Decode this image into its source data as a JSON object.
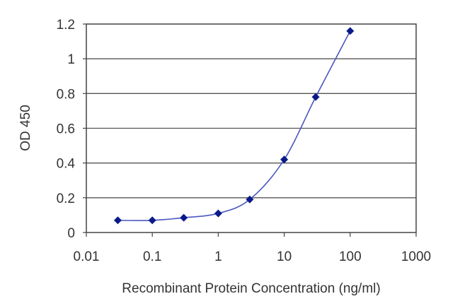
{
  "chart_data": {
    "type": "line",
    "x_scale": "log",
    "xlabel": "Recombinant Protein Concentration (ng/ml)",
    "ylabel": "OD 450",
    "xlim": [
      0.01,
      1000
    ],
    "ylim": [
      0,
      1.2
    ],
    "x_ticks": [
      "0.01",
      "0.1",
      "1",
      "10",
      "100",
      "1000"
    ],
    "y_ticks": [
      "0",
      "0.2",
      "0.4",
      "0.6",
      "0.8",
      "1",
      "1.2"
    ],
    "grid": "horizontal",
    "legend": "none",
    "series": [
      {
        "x": [
          0.03,
          0.1,
          0.3,
          1,
          3,
          10,
          30,
          100
        ],
        "y": [
          0.07,
          0.07,
          0.085,
          0.11,
          0.19,
          0.42,
          0.78,
          1.16
        ]
      }
    ],
    "colors": {
      "line": "#4a56c0",
      "marker": "#0a1a8a",
      "grid": "#555555",
      "frame": "#444444"
    }
  }
}
